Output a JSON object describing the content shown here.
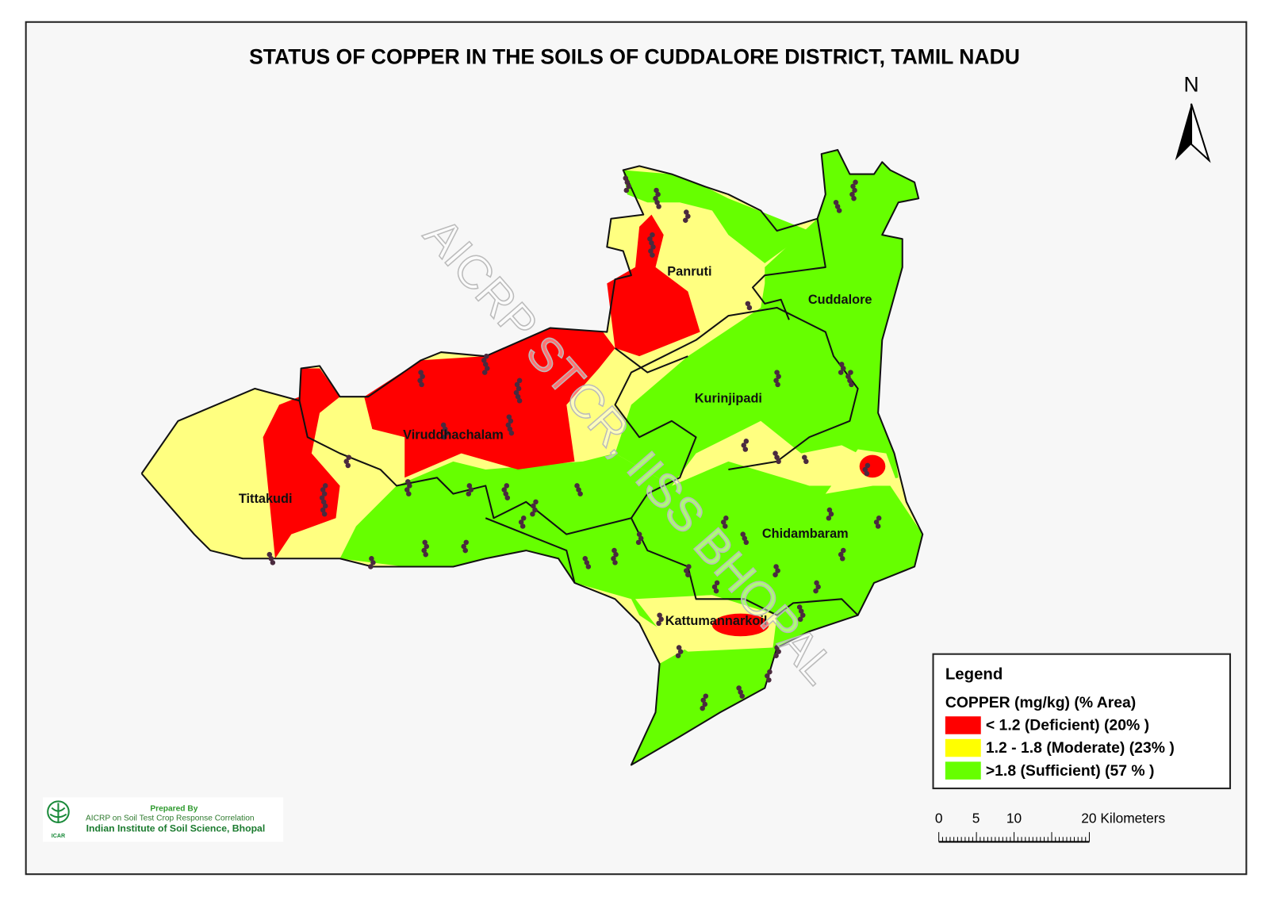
{
  "header": {
    "title": "STATUS OF COPPER  IN THE SOILS OF CUDDALORE DISTRICT,  TAMIL NADU"
  },
  "north_arrow": {
    "label": "N"
  },
  "places": [
    "Panruti",
    "Cuddalore",
    "Kurinjipadi",
    "Viruddhachalam",
    "Tittakudi",
    "Chidambaram",
    "Kattumannarkoil"
  ],
  "watermark": "AICRP STCR, IISS BHOPAL",
  "legend": {
    "title": "Legend",
    "subtitle": "COPPER  (mg/kg) (% Area)",
    "items": [
      "< 1.2  (Deficient) (20% )",
      "1.2 - 1.8  (Moderate) (23% )",
      ">1.8   (Sufficient) (57 % )"
    ]
  },
  "scale_bar": {
    "labels": [
      "0",
      "5",
      "10",
      "20 Kilometers"
    ]
  },
  "credit": {
    "logo_text": "ICAR",
    "prepared": "Prepared By",
    "project": "AICRP on Soil Test Crop Response Correlation",
    "institute": "Indian Institute of Soil Science, Bhopal"
  }
}
